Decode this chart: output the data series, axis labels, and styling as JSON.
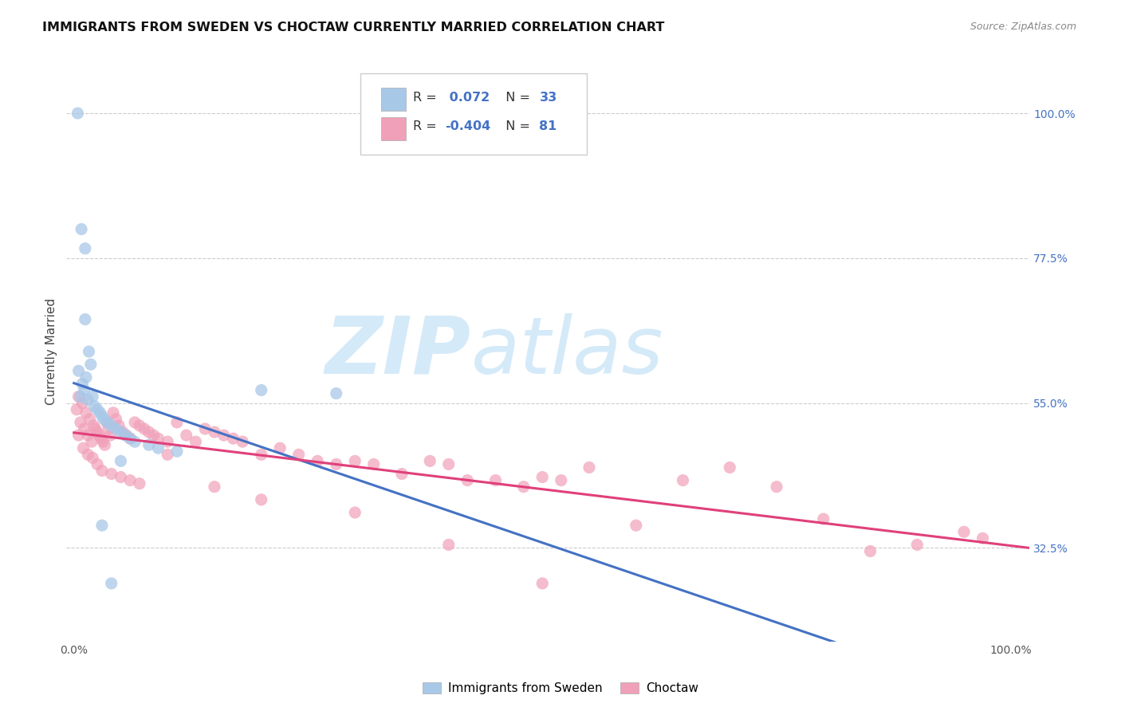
{
  "title": "IMMIGRANTS FROM SWEDEN VS CHOCTAW CURRENTLY MARRIED CORRELATION CHART",
  "source": "Source: ZipAtlas.com",
  "ylabel": "Currently Married",
  "yticks": [
    "32.5%",
    "55.0%",
    "77.5%",
    "100.0%"
  ],
  "ytick_vals": [
    0.325,
    0.55,
    0.775,
    1.0
  ],
  "R_sweden": 0.072,
  "N_sweden": 33,
  "R_choctaw": -0.404,
  "N_choctaw": 81,
  "color_sweden": "#a8c8e8",
  "color_choctaw": "#f0a0b8",
  "color_sweden_line": "#4472c4",
  "color_choctaw_line": "#e0407a",
  "color_dash": "#aaaaaa",
  "watermark_zip": "ZIP",
  "watermark_atlas": "atlas",
  "watermark_color": "#d5eaf8",
  "background_color": "#ffffff",
  "sw_x": [
    0.004,
    0.008,
    0.012,
    0.016,
    0.012,
    0.018,
    0.005,
    0.009,
    0.013,
    0.007,
    0.011,
    0.015,
    0.02,
    0.022,
    0.025,
    0.028,
    0.03,
    0.032,
    0.036,
    0.04,
    0.045,
    0.05,
    0.055,
    0.06,
    0.065,
    0.08,
    0.09,
    0.11,
    0.2,
    0.28,
    0.03,
    0.04,
    0.05
  ],
  "sw_y": [
    1.0,
    0.82,
    0.79,
    0.63,
    0.68,
    0.61,
    0.6,
    0.58,
    0.59,
    0.56,
    0.57,
    0.555,
    0.56,
    0.545,
    0.54,
    0.535,
    0.53,
    0.525,
    0.52,
    0.515,
    0.51,
    0.505,
    0.5,
    0.495,
    0.49,
    0.485,
    0.48,
    0.475,
    0.57,
    0.565,
    0.36,
    0.27,
    0.46
  ],
  "ch_x": [
    0.003,
    0.005,
    0.007,
    0.009,
    0.011,
    0.013,
    0.015,
    0.017,
    0.019,
    0.021,
    0.023,
    0.025,
    0.027,
    0.029,
    0.031,
    0.033,
    0.035,
    0.037,
    0.039,
    0.042,
    0.045,
    0.048,
    0.052,
    0.056,
    0.06,
    0.065,
    0.07,
    0.075,
    0.08,
    0.085,
    0.09,
    0.1,
    0.11,
    0.12,
    0.13,
    0.14,
    0.15,
    0.16,
    0.17,
    0.18,
    0.2,
    0.22,
    0.24,
    0.26,
    0.28,
    0.3,
    0.32,
    0.35,
    0.38,
    0.4,
    0.42,
    0.45,
    0.48,
    0.5,
    0.52,
    0.55,
    0.6,
    0.65,
    0.7,
    0.75,
    0.8,
    0.85,
    0.9,
    0.95,
    0.97,
    0.005,
    0.01,
    0.015,
    0.02,
    0.025,
    0.03,
    0.04,
    0.05,
    0.06,
    0.07,
    0.1,
    0.15,
    0.2,
    0.3,
    0.4,
    0.5
  ],
  "ch_y": [
    0.54,
    0.56,
    0.52,
    0.55,
    0.51,
    0.535,
    0.5,
    0.525,
    0.49,
    0.515,
    0.51,
    0.505,
    0.5,
    0.495,
    0.49,
    0.485,
    0.52,
    0.51,
    0.5,
    0.535,
    0.525,
    0.515,
    0.505,
    0.5,
    0.495,
    0.52,
    0.515,
    0.51,
    0.505,
    0.5,
    0.495,
    0.49,
    0.52,
    0.5,
    0.49,
    0.51,
    0.505,
    0.5,
    0.495,
    0.49,
    0.47,
    0.48,
    0.47,
    0.46,
    0.455,
    0.46,
    0.455,
    0.44,
    0.46,
    0.455,
    0.43,
    0.43,
    0.42,
    0.435,
    0.43,
    0.45,
    0.36,
    0.43,
    0.45,
    0.42,
    0.37,
    0.32,
    0.33,
    0.35,
    0.34,
    0.5,
    0.48,
    0.47,
    0.465,
    0.455,
    0.445,
    0.44,
    0.435,
    0.43,
    0.425,
    0.47,
    0.42,
    0.4,
    0.38,
    0.33,
    0.27
  ]
}
